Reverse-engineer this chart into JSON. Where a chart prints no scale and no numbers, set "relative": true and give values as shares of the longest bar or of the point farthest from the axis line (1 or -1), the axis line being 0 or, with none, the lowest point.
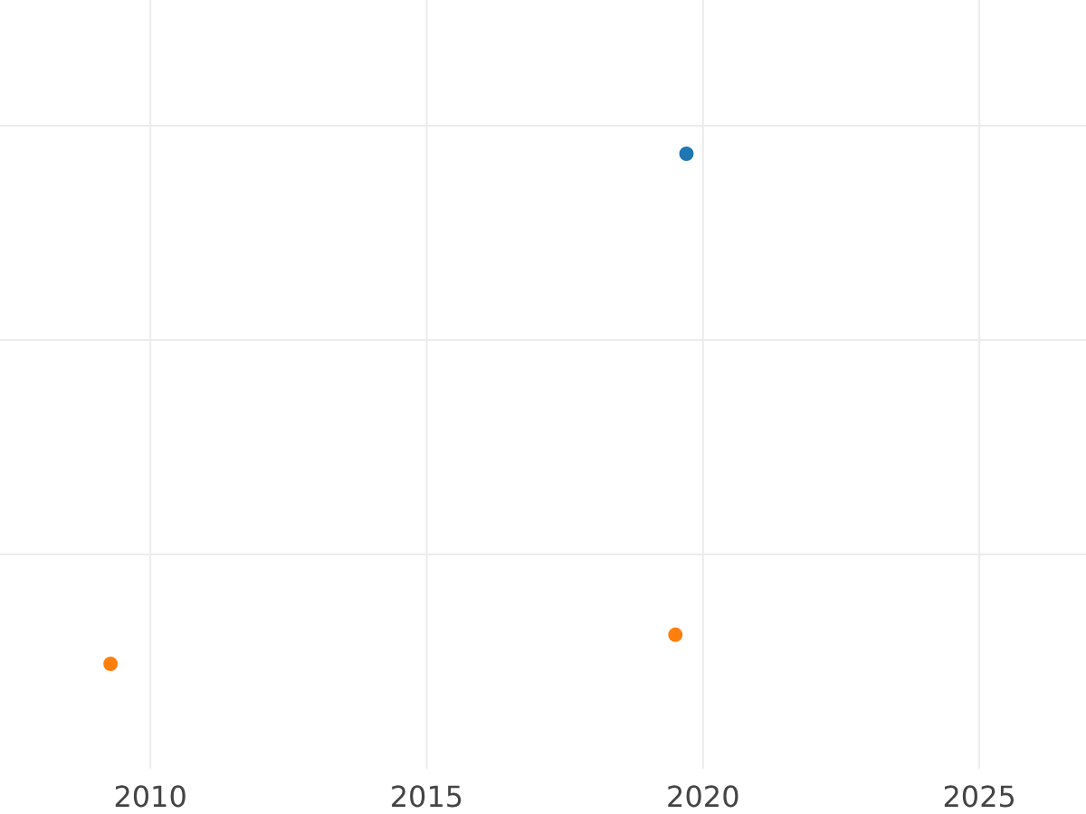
{
  "chart_data": {
    "type": "scatter",
    "relative": true,
    "xlim": [
      2007.28,
      2026.93
    ],
    "xticks": [
      2010,
      2015,
      2020,
      2025
    ],
    "grid": true,
    "marker": "circle",
    "tick_labels": "x",
    "series": [
      {
        "color": "#1f77b4",
        "x": [
          2019.7
        ],
        "values": [
          1
        ]
      },
      {
        "color": "#ff7f0e",
        "x": [
          2009.28,
          2019.5
        ],
        "values": [
          0,
          0.057
        ]
      }
    ]
  }
}
